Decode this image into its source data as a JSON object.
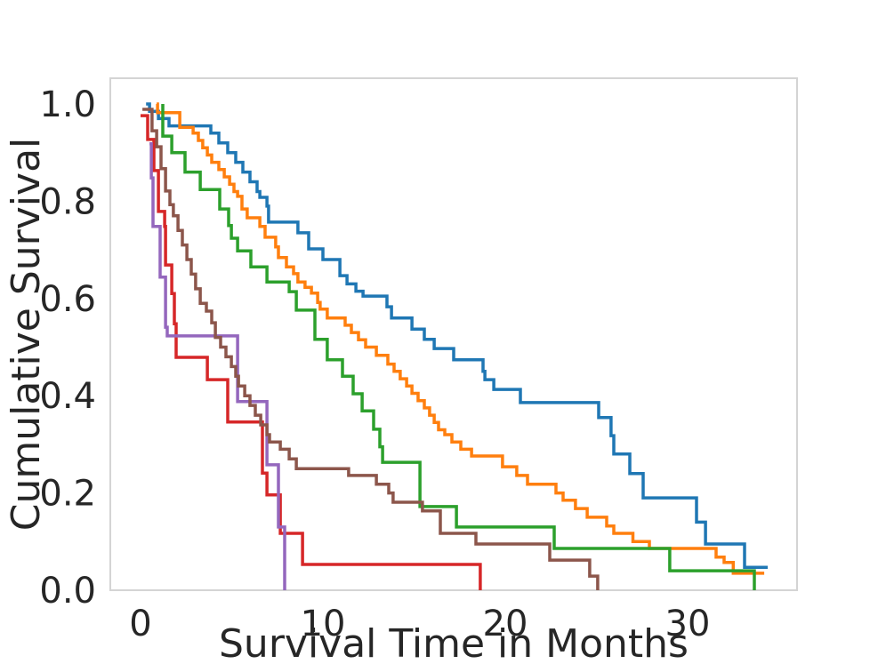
{
  "figure": {
    "background": "#ffffff"
  },
  "chart_data": {
    "type": "line",
    "subtype": "step-survival",
    "title": "",
    "xlabel": "Survival Time in Months",
    "ylabel": "Cumulative Survival",
    "grid": false,
    "legend": "none",
    "axis_color": "#d4d4d4",
    "text_color": "#262626",
    "xlim": [
      -1.66,
      36.0
    ],
    "ylim": [
      0,
      1.053
    ],
    "x_ticks": [
      {
        "v": 0,
        "label": "0"
      },
      {
        "v": 10,
        "label": "10"
      },
      {
        "v": 20,
        "label": "20"
      },
      {
        "v": 30,
        "label": "30"
      }
    ],
    "y_ticks": [
      {
        "v": 0.0,
        "label": "0.0"
      },
      {
        "v": 0.2,
        "label": "0.2"
      },
      {
        "v": 0.4,
        "label": "0.4"
      },
      {
        "v": 0.6,
        "label": "0.6"
      },
      {
        "v": 0.8,
        "label": "0.8"
      },
      {
        "v": 1.0,
        "label": "1.0"
      }
    ],
    "series": [
      {
        "name": "blue",
        "color": "#1f77b4",
        "end": 34.39,
        "points": [
          [
            0.3,
            1.0
          ],
          [
            0.49,
            0.985
          ],
          [
            0.98,
            0.97
          ],
          [
            1.56,
            0.955
          ],
          [
            3.85,
            0.94
          ],
          [
            4.29,
            0.92
          ],
          [
            4.78,
            0.9
          ],
          [
            5.22,
            0.88
          ],
          [
            5.61,
            0.86
          ],
          [
            6.0,
            0.84
          ],
          [
            6.39,
            0.82
          ],
          [
            6.54,
            0.808
          ],
          [
            6.93,
            0.79
          ],
          [
            7.02,
            0.757
          ],
          [
            8.63,
            0.735
          ],
          [
            9.22,
            0.702
          ],
          [
            10.0,
            0.68
          ],
          [
            10.93,
            0.647
          ],
          [
            11.32,
            0.63
          ],
          [
            11.81,
            0.615
          ],
          [
            12.2,
            0.605
          ],
          [
            13.51,
            0.583
          ],
          [
            13.76,
            0.56
          ],
          [
            14.88,
            0.537
          ],
          [
            15.56,
            0.516
          ],
          [
            16.1,
            0.497
          ],
          [
            17.17,
            0.474
          ],
          [
            18.78,
            0.45
          ],
          [
            18.88,
            0.433
          ],
          [
            19.37,
            0.413
          ],
          [
            20.83,
            0.386
          ],
          [
            25.12,
            0.355
          ],
          [
            25.8,
            0.318
          ],
          [
            25.95,
            0.28
          ],
          [
            26.83,
            0.24
          ],
          [
            27.56,
            0.19
          ],
          [
            30.49,
            0.14
          ],
          [
            30.98,
            0.095
          ],
          [
            33.12,
            0.047
          ]
        ]
      },
      {
        "name": "orange",
        "color": "#ff7f0e",
        "end": 34.2,
        "points": [
          [
            0.88,
            1.0
          ],
          [
            0.93,
            0.982
          ],
          [
            2.15,
            0.952
          ],
          [
            2.88,
            0.94
          ],
          [
            3.17,
            0.925
          ],
          [
            3.41,
            0.91
          ],
          [
            3.66,
            0.895
          ],
          [
            3.9,
            0.88
          ],
          [
            4.29,
            0.865
          ],
          [
            4.59,
            0.85
          ],
          [
            4.88,
            0.835
          ],
          [
            5.12,
            0.82
          ],
          [
            5.32,
            0.81
          ],
          [
            5.56,
            0.784
          ],
          [
            5.85,
            0.766
          ],
          [
            6.54,
            0.748
          ],
          [
            6.83,
            0.726
          ],
          [
            7.41,
            0.706
          ],
          [
            7.56,
            0.684
          ],
          [
            8.0,
            0.665
          ],
          [
            8.39,
            0.651
          ],
          [
            8.63,
            0.634
          ],
          [
            9.02,
            0.623
          ],
          [
            9.37,
            0.611
          ],
          [
            9.71,
            0.592
          ],
          [
            9.85,
            0.578
          ],
          [
            10.24,
            0.56
          ],
          [
            11.22,
            0.545
          ],
          [
            11.56,
            0.53
          ],
          [
            11.95,
            0.515
          ],
          [
            12.34,
            0.5
          ],
          [
            12.93,
            0.483
          ],
          [
            13.56,
            0.465
          ],
          [
            13.9,
            0.45
          ],
          [
            14.24,
            0.435
          ],
          [
            14.59,
            0.42
          ],
          [
            14.88,
            0.405
          ],
          [
            15.22,
            0.39
          ],
          [
            15.56,
            0.375
          ],
          [
            15.85,
            0.36
          ],
          [
            16.1,
            0.345
          ],
          [
            16.34,
            0.33
          ],
          [
            16.68,
            0.32
          ],
          [
            17.07,
            0.305
          ],
          [
            17.56,
            0.29
          ],
          [
            18.15,
            0.276
          ],
          [
            19.85,
            0.254
          ],
          [
            20.63,
            0.236
          ],
          [
            21.22,
            0.218
          ],
          [
            22.78,
            0.2
          ],
          [
            23.17,
            0.185
          ],
          [
            23.85,
            0.168
          ],
          [
            24.49,
            0.15
          ],
          [
            25.56,
            0.132
          ],
          [
            25.95,
            0.117
          ],
          [
            27.0,
            0.1
          ],
          [
            27.9,
            0.086
          ],
          [
            31.56,
            0.068
          ],
          [
            32.0,
            0.057
          ],
          [
            32.5,
            0.035
          ]
        ]
      },
      {
        "name": "green",
        "color": "#2ca02c",
        "end": 33.66,
        "points": [
          [
            1.22,
            1.0
          ],
          [
            1.22,
            0.934
          ],
          [
            1.71,
            0.9
          ],
          [
            2.44,
            0.86
          ],
          [
            3.27,
            0.824
          ],
          [
            4.34,
            0.784
          ],
          [
            4.83,
            0.75
          ],
          [
            4.98,
            0.724
          ],
          [
            5.32,
            0.698
          ],
          [
            6.05,
            0.665
          ],
          [
            6.93,
            0.634
          ],
          [
            8.15,
            0.614
          ],
          [
            8.54,
            0.576
          ],
          [
            9.56,
            0.516
          ],
          [
            10.24,
            0.474
          ],
          [
            11.07,
            0.44
          ],
          [
            11.66,
            0.404
          ],
          [
            12.15,
            0.369
          ],
          [
            12.78,
            0.331
          ],
          [
            13.12,
            0.295
          ],
          [
            13.27,
            0.263
          ],
          [
            15.32,
            0.172
          ],
          [
            17.32,
            0.13
          ],
          [
            22.68,
            0.086
          ],
          [
            29.02,
            0.04
          ],
          [
            33.66,
            0.0
          ]
        ]
      },
      {
        "name": "red",
        "color": "#d62728",
        "end": 18.63,
        "points": [
          [
            0.0,
            0.976
          ],
          [
            0.39,
            0.927
          ],
          [
            0.73,
            0.863
          ],
          [
            0.98,
            0.779
          ],
          [
            1.32,
            0.748
          ],
          [
            1.37,
            0.669
          ],
          [
            1.71,
            0.61
          ],
          [
            1.85,
            0.548
          ],
          [
            1.95,
            0.479
          ],
          [
            3.66,
            0.433
          ],
          [
            4.78,
            0.346
          ],
          [
            6.68,
            0.241
          ],
          [
            6.93,
            0.196
          ],
          [
            7.66,
            0.117
          ],
          [
            8.88,
            0.053
          ],
          [
            18.63,
            0.0
          ]
        ]
      },
      {
        "name": "purple",
        "color": "#9467bd",
        "end": 7.9,
        "points": [
          [
            0.49,
            0.918
          ],
          [
            0.59,
            0.848
          ],
          [
            0.68,
            0.748
          ],
          [
            1.07,
            0.644
          ],
          [
            1.37,
            0.541
          ],
          [
            1.46,
            0.523
          ],
          [
            5.32,
            0.388
          ],
          [
            6.93,
            0.258
          ],
          [
            7.56,
            0.13
          ],
          [
            7.9,
            0.0
          ]
        ]
      },
      {
        "name": "brown",
        "color": "#8c564b",
        "end": 25.07,
        "points": [
          [
            0.1,
            0.989
          ],
          [
            0.63,
            0.945
          ],
          [
            0.88,
            0.912
          ],
          [
            1.12,
            0.867
          ],
          [
            1.37,
            0.821
          ],
          [
            1.61,
            0.793
          ],
          [
            1.8,
            0.77
          ],
          [
            2.05,
            0.74
          ],
          [
            2.29,
            0.71
          ],
          [
            2.54,
            0.68
          ],
          [
            2.78,
            0.65
          ],
          [
            3.02,
            0.62
          ],
          [
            3.27,
            0.59
          ],
          [
            3.61,
            0.574
          ],
          [
            3.9,
            0.55
          ],
          [
            4.1,
            0.52
          ],
          [
            4.39,
            0.5
          ],
          [
            4.68,
            0.48
          ],
          [
            4.98,
            0.46
          ],
          [
            5.22,
            0.44
          ],
          [
            5.37,
            0.42
          ],
          [
            5.71,
            0.4
          ],
          [
            6.0,
            0.38
          ],
          [
            6.29,
            0.36
          ],
          [
            6.59,
            0.34
          ],
          [
            6.93,
            0.32
          ],
          [
            7.07,
            0.305
          ],
          [
            7.66,
            0.29
          ],
          [
            8.15,
            0.27
          ],
          [
            8.54,
            0.25
          ],
          [
            11.41,
            0.236
          ],
          [
            12.93,
            0.218
          ],
          [
            13.61,
            0.2
          ],
          [
            13.85,
            0.181
          ],
          [
            15.46,
            0.163
          ],
          [
            16.44,
            0.117
          ],
          [
            18.39,
            0.095
          ],
          [
            22.44,
            0.062
          ],
          [
            24.63,
            0.029
          ],
          [
            25.07,
            0.0
          ]
        ]
      }
    ]
  }
}
